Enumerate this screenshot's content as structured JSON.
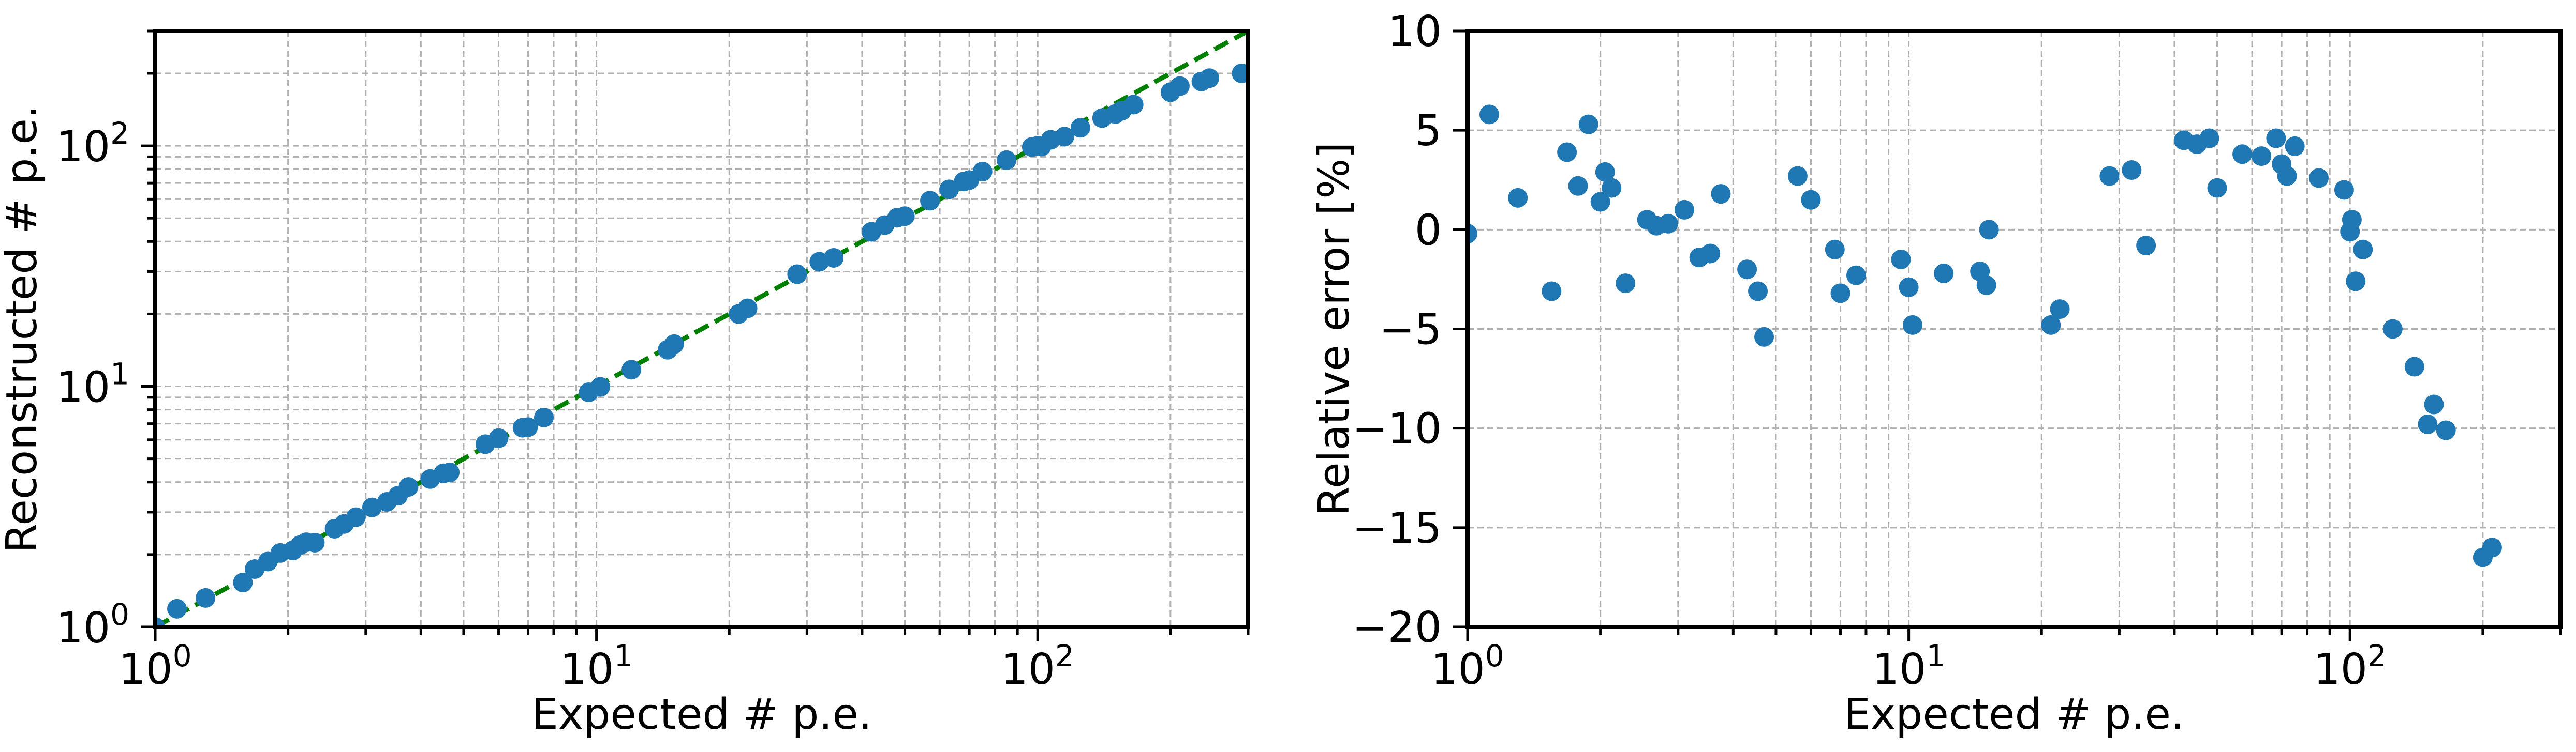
{
  "chart_data": [
    {
      "type": "scatter",
      "xlabel": "Expected # p.e.",
      "ylabel": "Reconstructed # p.e.",
      "xscale": "log",
      "yscale": "log",
      "xlim": [
        1,
        300
      ],
      "ylim": [
        1,
        300
      ],
      "grid": true,
      "x_ticks": [
        {
          "base": "10",
          "exp": "0"
        },
        {
          "base": "10",
          "exp": "1"
        },
        {
          "base": "10",
          "exp": "2"
        }
      ],
      "y_ticks": [
        {
          "base": "10",
          "exp": "0"
        },
        {
          "base": "10",
          "exp": "1"
        },
        {
          "base": "10",
          "exp": "2"
        }
      ],
      "reference_line": {
        "style": "dashed",
        "color": "#008000",
        "y_equals_x": true
      },
      "marker_color": "#1f77b4",
      "series": [
        {
          "x": [
            1.0,
            1.12,
            1.3,
            1.58,
            1.68,
            1.8,
            1.92,
            2.05,
            2.13,
            2.2,
            2.3,
            2.55,
            2.68,
            2.85,
            3.1,
            3.35,
            3.55,
            3.75,
            4.2,
            4.5,
            4.65,
            5.6,
            6.0,
            6.8,
            7.0,
            7.6,
            9.6,
            10.2,
            12.0,
            14.5,
            15.0,
            21.0,
            22.0,
            28.5,
            32.0,
            34.5,
            42.0,
            45.0,
            48.0,
            50.0,
            57.0,
            63.0,
            68.0,
            70.0,
            75.0,
            85.0,
            97.0,
            100.0,
            102.0,
            107.0,
            115.0,
            125.0,
            140.0,
            150.0,
            155.0,
            165.0,
            200.0,
            210.0,
            235.0,
            245.0,
            290.0
          ],
          "y": [
            1.0,
            1.19,
            1.32,
            1.53,
            1.74,
            1.87,
            2.03,
            2.08,
            2.19,
            2.25,
            2.24,
            2.56,
            2.68,
            2.86,
            3.14,
            3.31,
            3.51,
            3.82,
            4.12,
            4.35,
            4.39,
            5.75,
            6.09,
            6.73,
            6.77,
            7.42,
            9.45,
            9.95,
            11.73,
            14.2,
            14.98,
            19.99,
            21.1,
            29.26,
            32.96,
            34.2,
            43.89,
            46.8,
            50.21,
            51.0,
            59.13,
            65.9,
            71.06,
            72.0,
            78.15,
            87.13,
            98.85,
            100.0,
            99.3,
            105.9,
            109.2,
            118.8,
            130.4,
            135.5,
            139.8,
            148.3,
            167.0,
            177.0,
            185.0,
            191.0,
            200.0
          ]
        }
      ]
    },
    {
      "type": "scatter",
      "xlabel": "Expected # p.e.",
      "ylabel": "Relative error [%]",
      "xscale": "log",
      "xlim": [
        1,
        300
      ],
      "ylim": [
        -20,
        10
      ],
      "grid": true,
      "x_ticks": [
        {
          "base": "10",
          "exp": "0"
        },
        {
          "base": "10",
          "exp": "1"
        },
        {
          "base": "10",
          "exp": "2"
        }
      ],
      "y_ticks": [
        "−20",
        "−15",
        "−10",
        "−5",
        "0",
        "5",
        "10"
      ],
      "marker_color": "#1f77b4",
      "series": [
        {
          "x": [
            1.0,
            1.12,
            1.3,
            1.55,
            1.68,
            1.78,
            1.88,
            2.0,
            2.05,
            2.12,
            2.28,
            2.55,
            2.68,
            2.85,
            3.1,
            3.35,
            3.55,
            3.75,
            4.3,
            4.55,
            4.7,
            5.6,
            6.0,
            6.8,
            7.0,
            7.6,
            9.6,
            10.0,
            10.2,
            12.0,
            14.5,
            15.0,
            15.2,
            21.0,
            22.0,
            28.5,
            32.0,
            34.5,
            42.0,
            45.0,
            48.0,
            50.0,
            57.0,
            63.0,
            68.0,
            70.0,
            72.0,
            75.0,
            85.0,
            97.0,
            100.0,
            101.0,
            103.0,
            107.0,
            125.0,
            140.0,
            150.0,
            155.0,
            165.0,
            200.0,
            210.0
          ],
          "y": [
            -0.2,
            5.8,
            1.6,
            -3.1,
            3.9,
            2.2,
            5.3,
            1.4,
            2.9,
            2.1,
            -2.7,
            0.5,
            0.2,
            0.3,
            1.0,
            -1.4,
            -1.2,
            1.8,
            -2.0,
            -3.1,
            -5.4,
            2.7,
            1.5,
            -1.0,
            -3.2,
            -2.3,
            -1.5,
            -2.9,
            -4.8,
            -2.2,
            -2.1,
            -2.8,
            0.0,
            -4.8,
            -4.0,
            2.7,
            3.0,
            -0.8,
            4.5,
            4.3,
            4.6,
            2.1,
            3.8,
            3.7,
            4.6,
            3.3,
            2.7,
            4.2,
            2.6,
            2.0,
            -0.1,
            0.5,
            -2.6,
            -1.0,
            -5.0,
            -6.9,
            -9.8,
            -8.8,
            -10.1,
            -16.5,
            -16.0
          ]
        }
      ]
    }
  ]
}
